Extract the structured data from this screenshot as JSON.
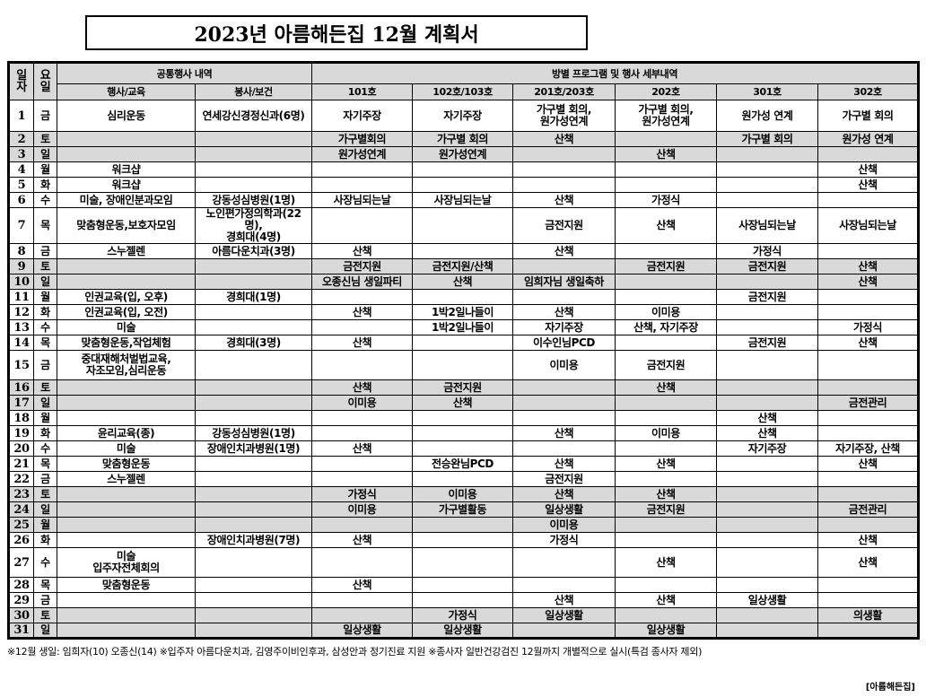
{
  "title": "2023년 아름해든집 12월 계획서",
  "header": {
    "day": "일\n자",
    "dow": "요\n일",
    "common_group": "공통행사 내역",
    "room_group": "방별 프로그램 및 행사 세부내역",
    "event": "행사/교육",
    "service": "봉사/보건",
    "rooms": [
      "101호",
      "102호/103호",
      "201호/203호",
      "202호",
      "301호",
      "302호"
    ]
  },
  "shade_color": "#d9d9d9",
  "rows": [
    {
      "day": "1",
      "dow": "금",
      "event": "심리운동",
      "service": "연세강신경정신과(6명)",
      "rooms": [
        "자기주장",
        "자기주장",
        "가구별 회의,\n원가성연계",
        "가구별 회의,\n원가성연계",
        "원가성 연계",
        "가구별 회의"
      ],
      "shaded": false,
      "tall": true
    },
    {
      "day": "2",
      "dow": "토",
      "event": "",
      "service": "",
      "rooms": [
        "가구별회의",
        "가구별 회의",
        "산책",
        "",
        "가구별 회의",
        "원가성 연계"
      ],
      "shaded": true
    },
    {
      "day": "3",
      "dow": "일",
      "event": "",
      "service": "",
      "rooms": [
        "원가성연계",
        "원가성연계",
        "",
        "산책",
        "",
        ""
      ],
      "shaded": true
    },
    {
      "day": "4",
      "dow": "월",
      "event": "워크샵",
      "service": "",
      "rooms": [
        "",
        "",
        "",
        "",
        "",
        "산책"
      ],
      "shaded": false
    },
    {
      "day": "5",
      "dow": "화",
      "event": "워크샵",
      "service": "",
      "rooms": [
        "",
        "",
        "",
        "",
        "",
        "산책"
      ],
      "shaded": false
    },
    {
      "day": "6",
      "dow": "수",
      "event": "미술, 장애인분과모임",
      "service": "강동성심병원(1명)",
      "rooms": [
        "사장님되는날",
        "사장님되는날",
        "산책",
        "가정식",
        "",
        ""
      ],
      "shaded": false
    },
    {
      "day": "7",
      "dow": "목",
      "event": "맞춤형운동,보호자모임",
      "service": "노인편가정의학과(22명),\n경희대(4명)",
      "rooms": [
        "",
        "",
        "금전지원",
        "산책",
        "사장님되는날",
        "사장님되는날"
      ],
      "shaded": false,
      "tall": true
    },
    {
      "day": "8",
      "dow": "금",
      "event": "스누젤렌",
      "service": "아름다운치과(3명)",
      "rooms": [
        "산책",
        "",
        "산책",
        "",
        "가정식",
        ""
      ],
      "shaded": false
    },
    {
      "day": "9",
      "dow": "토",
      "event": "",
      "service": "",
      "rooms": [
        "금전지원",
        "금전지원/산책",
        "",
        "금전지원",
        "금전지원",
        "산책"
      ],
      "shaded": true
    },
    {
      "day": "10",
      "dow": "일",
      "event": "",
      "service": "",
      "rooms": [
        "오종신님 생일파티",
        "산책",
        "임희자님 생일축하",
        "",
        "",
        "산책"
      ],
      "shaded": true
    },
    {
      "day": "11",
      "dow": "월",
      "event": "인권교육(입, 오후)",
      "service": "경희대(1명)",
      "rooms": [
        "",
        "",
        "",
        "",
        "금전지원",
        ""
      ],
      "shaded": false
    },
    {
      "day": "12",
      "dow": "화",
      "event": "인권교육(입, 오전)",
      "service": "",
      "rooms": [
        "산책",
        "1박2일나들이",
        "산책",
        "이미용",
        "",
        ""
      ],
      "shaded": false
    },
    {
      "day": "13",
      "dow": "수",
      "event": "미술",
      "service": "",
      "rooms": [
        "",
        "1박2일나들이",
        "자기주장",
        "산책, 자기주장",
        "",
        "가정식"
      ],
      "shaded": false
    },
    {
      "day": "14",
      "dow": "목",
      "event": "맞춤형운동,작업체험",
      "service": "경희대(3명)",
      "rooms": [
        "산책",
        "",
        "이수인님PCD",
        "",
        "금전지원",
        "산책"
      ],
      "shaded": false
    },
    {
      "day": "15",
      "dow": "금",
      "event": "중대재해처벌법교육,\n자조모임,심리운동",
      "service": "",
      "rooms": [
        "",
        "",
        "이미용",
        "금전지원",
        "",
        ""
      ],
      "shaded": false,
      "tall": true
    },
    {
      "day": "16",
      "dow": "토",
      "event": "",
      "service": "",
      "rooms": [
        "산책",
        "금전지원",
        "",
        "산책",
        "",
        ""
      ],
      "shaded": true
    },
    {
      "day": "17",
      "dow": "일",
      "event": "",
      "service": "",
      "rooms": [
        "이미용",
        "산책",
        "",
        "",
        "",
        "금전관리"
      ],
      "shaded": true
    },
    {
      "day": "18",
      "dow": "월",
      "event": "",
      "service": "",
      "rooms": [
        "",
        "",
        "",
        "",
        "산책",
        ""
      ],
      "shaded": false
    },
    {
      "day": "19",
      "dow": "화",
      "event": "윤리교육(종)",
      "service": "강동성심병원(1명)",
      "rooms": [
        "",
        "",
        "산책",
        "이미용",
        "산책",
        ""
      ],
      "shaded": false
    },
    {
      "day": "20",
      "dow": "수",
      "event": "미술",
      "service": "장애인치과병원(1명)",
      "rooms": [
        "산책",
        "",
        "",
        "",
        "자기주장",
        "자기주장, 산책"
      ],
      "shaded": false
    },
    {
      "day": "21",
      "dow": "목",
      "event": "맞춤형운동",
      "service": "",
      "rooms": [
        "",
        "전승완님PCD",
        "산책",
        "산책",
        "",
        "산책"
      ],
      "shaded": false
    },
    {
      "day": "22",
      "dow": "금",
      "event": "스누젤렌",
      "service": "",
      "rooms": [
        "",
        "",
        "금전지원",
        "",
        "",
        ""
      ],
      "shaded": false
    },
    {
      "day": "23",
      "dow": "토",
      "event": "",
      "service": "",
      "rooms": [
        "가정식",
        "이미용",
        "산책",
        "산책",
        "",
        ""
      ],
      "shaded": true
    },
    {
      "day": "24",
      "dow": "일",
      "event": "",
      "service": "",
      "rooms": [
        "이미용",
        "가구별활동",
        "일상생활",
        "금전지원",
        "",
        "금전관리"
      ],
      "shaded": true
    },
    {
      "day": "25",
      "dow": "월",
      "event": "",
      "service": "",
      "rooms": [
        "",
        "",
        "이미용",
        "",
        "",
        ""
      ],
      "shaded": true
    },
    {
      "day": "26",
      "dow": "화",
      "event": "",
      "service": "장애인치과병원(7명)",
      "rooms": [
        "산책",
        "",
        "가정식",
        "",
        "",
        "산책"
      ],
      "shaded": false
    },
    {
      "day": "27",
      "dow": "수",
      "event": "미술\n입주자전체회의",
      "service": "",
      "rooms": [
        "",
        "",
        "",
        "산책",
        "",
        "산책"
      ],
      "shaded": false,
      "tall": true
    },
    {
      "day": "28",
      "dow": "목",
      "event": "맞춤형운동",
      "service": "",
      "rooms": [
        "산책",
        "",
        "",
        "",
        "",
        ""
      ],
      "shaded": false
    },
    {
      "day": "29",
      "dow": "금",
      "event": "",
      "service": "",
      "rooms": [
        "",
        "",
        "산책",
        "산책",
        "일상생활",
        ""
      ],
      "shaded": false
    },
    {
      "day": "30",
      "dow": "토",
      "event": "",
      "service": "",
      "rooms": [
        "",
        "가정식",
        "일상생활",
        "",
        "",
        "의생활"
      ],
      "shaded": true
    },
    {
      "day": "31",
      "dow": "일",
      "event": "",
      "service": "",
      "rooms": [
        "일상생활",
        "일상생활",
        "",
        "일상생활",
        "",
        ""
      ],
      "shaded": true
    }
  ],
  "footer_note": "※12월 생일: 임희자(10)  오종신(14)  ※입주자 아름다운치과, 김영주이비인후과, 삼성안과 정기진료 지원  ※종사자 일반건강검진 12월까지 개별적으로 실시(특검 종사자 제외)",
  "org_label": "[아름해든집]"
}
